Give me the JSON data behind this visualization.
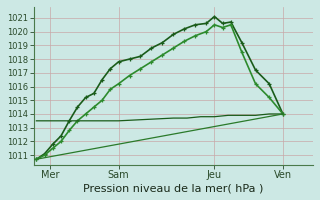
{
  "bg_color": "#cce8e4",
  "grid_color": "#c8a8a8",
  "xlabel": "Pression niveau de la mer( hPa )",
  "xlabel_fontsize": 8,
  "ytick_fontsize": 6,
  "xtick_fontsize": 7,
  "ylim": [
    1010.3,
    1021.8
  ],
  "yticks": [
    1011,
    1012,
    1013,
    1014,
    1015,
    1016,
    1017,
    1018,
    1019,
    1020,
    1021
  ],
  "xlim": [
    -0.1,
    10.1
  ],
  "xtick_positions": [
    0.5,
    3.0,
    6.5,
    9.0
  ],
  "xtick_labels": [
    "Mer",
    "Sam",
    "Jeu",
    "Ven"
  ],
  "series": [
    {
      "x": [
        0,
        0.3,
        0.6,
        0.9,
        1.2,
        1.5,
        1.8,
        2.1,
        2.4,
        2.7,
        3.0,
        3.4,
        3.8,
        4.2,
        4.6,
        5.0,
        5.4,
        5.8,
        6.2,
        6.5,
        6.8,
        7.1,
        7.5,
        8.0,
        8.5,
        9.0
      ],
      "y": [
        1010.7,
        1011.1,
        1011.8,
        1012.4,
        1013.5,
        1014.5,
        1015.2,
        1015.5,
        1016.5,
        1017.3,
        1017.8,
        1018.0,
        1018.2,
        1018.8,
        1019.2,
        1019.8,
        1020.2,
        1020.5,
        1020.6,
        1021.1,
        1020.6,
        1020.7,
        1019.2,
        1017.2,
        1016.2,
        1014.0
      ],
      "color": "#1a5c1a",
      "lw": 1.2,
      "marker": "+"
    },
    {
      "x": [
        0,
        0.3,
        0.6,
        0.9,
        1.2,
        1.5,
        1.8,
        2.1,
        2.4,
        2.7,
        3.0,
        3.4,
        3.8,
        4.2,
        4.6,
        5.0,
        5.4,
        5.8,
        6.2,
        6.5,
        6.8,
        7.1,
        7.5,
        8.0,
        8.5,
        9.0
      ],
      "y": [
        1010.7,
        1011.0,
        1011.5,
        1012.0,
        1012.8,
        1013.5,
        1014.0,
        1014.5,
        1015.0,
        1015.8,
        1016.2,
        1016.8,
        1017.3,
        1017.8,
        1018.3,
        1018.8,
        1019.3,
        1019.7,
        1020.0,
        1020.5,
        1020.3,
        1020.5,
        1018.5,
        1016.2,
        1015.2,
        1014.0
      ],
      "color": "#2d8b2d",
      "lw": 1.2,
      "marker": "+"
    },
    {
      "x": [
        0,
        1.0,
        2.0,
        3.0,
        4.0,
        5.0,
        5.5,
        6.0,
        6.5,
        7.0,
        7.5,
        8.0,
        8.5,
        9.0
      ],
      "y": [
        1013.5,
        1013.5,
        1013.5,
        1013.5,
        1013.6,
        1013.7,
        1013.7,
        1013.8,
        1013.8,
        1013.9,
        1013.9,
        1013.9,
        1014.0,
        1014.0
      ],
      "color": "#1a5c1a",
      "lw": 0.9,
      "marker": null
    },
    {
      "x": [
        0,
        9.0
      ],
      "y": [
        1010.7,
        1014.0
      ],
      "color": "#2a7a2a",
      "lw": 0.9,
      "marker": null
    }
  ]
}
